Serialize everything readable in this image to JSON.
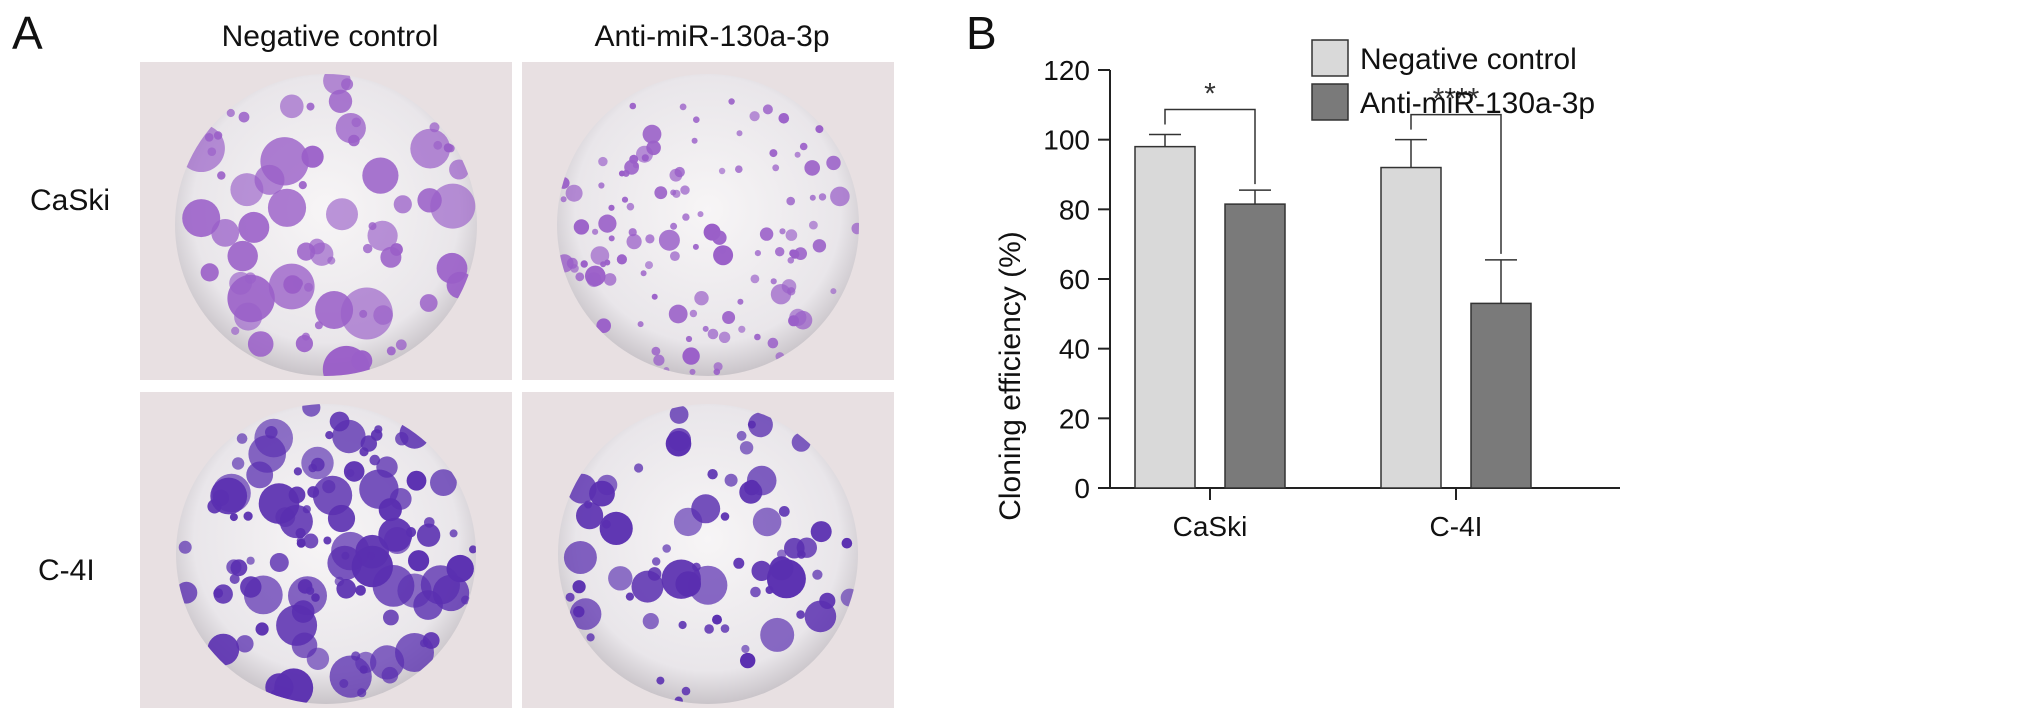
{
  "panel_a": {
    "letter": "A",
    "columns": [
      "Negative control",
      "Anti-miR-130a-3p"
    ],
    "rows": [
      "CaSki",
      "C-4I"
    ]
  },
  "panel_b": {
    "letter": "B"
  },
  "colors": {
    "negative_control": "#d9d9d9",
    "anti_mir": "#7a7a7a",
    "caski_colony": "#9a5fc8",
    "c4i_colony": "#5a2fb0",
    "tile_bg": "#e8e0e2"
  },
  "chart_data": {
    "type": "bar",
    "title": "",
    "xlabel": "",
    "ylabel": "Cloning efficiency (%)",
    "ylim": [
      0,
      120
    ],
    "yticks": [
      0,
      20,
      40,
      60,
      80,
      100,
      120
    ],
    "categories": [
      "CaSki",
      "C-4I"
    ],
    "series": [
      {
        "name": "Negative control",
        "values": [
          98,
          92
        ],
        "errors": [
          3.5,
          8
        ]
      },
      {
        "name": "Anti-miR-130a-3p",
        "values": [
          81.5,
          53
        ],
        "errors": [
          4,
          12.5
        ]
      }
    ],
    "significance": [
      "*",
      "****"
    ],
    "legend_position": "top-right",
    "grid": false
  }
}
